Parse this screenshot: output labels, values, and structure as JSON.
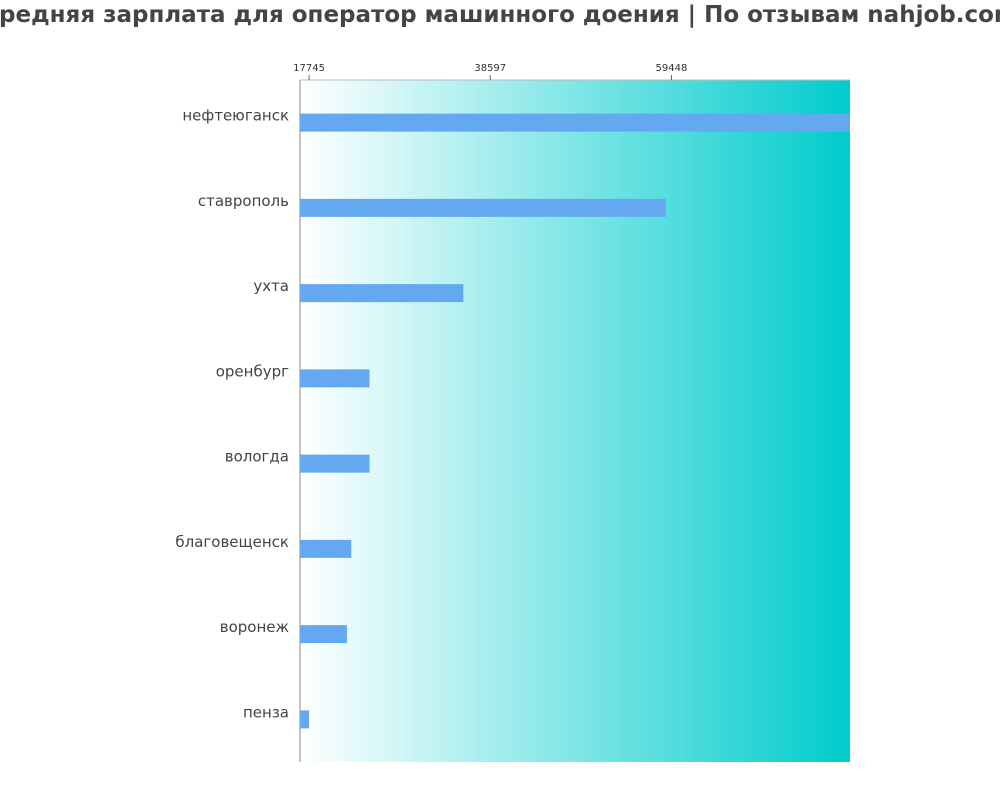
{
  "chart_data": {
    "type": "bar",
    "orientation": "horizontal",
    "title": "Средняя зарплата для оператор машинного доения | По отзывам nahjob.com",
    "categories": [
      "нефтеюганск",
      "ставрополь",
      "ухта",
      "оренбург",
      "вологда",
      "благовещенск",
      "воронеж",
      "пенза"
    ],
    "values": [
      80000,
      58800,
      35500,
      24700,
      24700,
      22600,
      22100,
      17745
    ],
    "x_ticks": [
      17745,
      38597,
      59448
    ],
    "xlim": [
      16700,
      80000
    ],
    "xaxis_position": "top",
    "grid": false,
    "legend": "none",
    "bar_color": "#64a8f0",
    "background_gradient": [
      "#ffffff",
      "#00cccc"
    ]
  }
}
